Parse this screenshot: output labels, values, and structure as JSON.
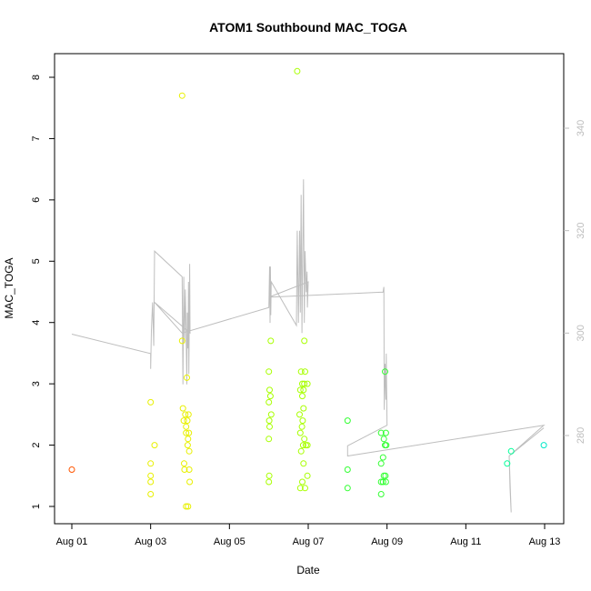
{
  "chart_data": {
    "type": "scatter",
    "title": "ATOM1 Southbound MAC_TOGA",
    "xlabel": "Date",
    "ylabel": "MAC_TOGA",
    "xlim": [
      1.0,
      13.0
    ],
    "ylim": [
      0.7,
      8.3
    ],
    "x_ticks": [
      1,
      3,
      5,
      7,
      9,
      11,
      13
    ],
    "x_tick_labels": [
      "Aug 01",
      "Aug 03",
      "Aug 05",
      "Aug 07",
      "Aug 09",
      "Aug 11",
      "Aug 13"
    ],
    "y_ticks": [
      1,
      2,
      3,
      4,
      5,
      6,
      7,
      8
    ],
    "y_tick_labels": [
      "1",
      "2",
      "3",
      "4",
      "5",
      "6",
      "7",
      "8"
    ],
    "y2_ticks": [
      280,
      300,
      320,
      340
    ],
    "y2_tick_labels": [
      "280",
      "300",
      "320",
      "340"
    ],
    "y2_lim": [
      262,
      351
    ],
    "grid": false,
    "line_color": "#bebebe",
    "colors": {
      "red": "#ff5500",
      "yellow": "#e8f000",
      "lime": "#a8ff00",
      "green": "#33ff33",
      "teal": "#00ff99",
      "aqua": "#00e8c8"
    },
    "points": [
      {
        "x": 1.0,
        "y": 1.6,
        "c": "red"
      },
      {
        "x": 3.0,
        "y": 2.7,
        "c": "yellow"
      },
      {
        "x": 3.0,
        "y": 1.7,
        "c": "yellow"
      },
      {
        "x": 3.0,
        "y": 1.5,
        "c": "yellow"
      },
      {
        "x": 3.0,
        "y": 1.4,
        "c": "yellow"
      },
      {
        "x": 3.0,
        "y": 1.2,
        "c": "yellow"
      },
      {
        "x": 3.1,
        "y": 2.0,
        "c": "yellow"
      },
      {
        "x": 3.8,
        "y": 7.7,
        "c": "yellow"
      },
      {
        "x": 3.8,
        "y": 3.7,
        "c": "yellow"
      },
      {
        "x": 3.82,
        "y": 2.6,
        "c": "yellow"
      },
      {
        "x": 3.84,
        "y": 2.4,
        "c": "yellow"
      },
      {
        "x": 3.85,
        "y": 1.7,
        "c": "yellow"
      },
      {
        "x": 3.86,
        "y": 1.6,
        "c": "yellow"
      },
      {
        "x": 3.88,
        "y": 2.5,
        "c": "yellow"
      },
      {
        "x": 3.9,
        "y": 2.3,
        "c": "yellow"
      },
      {
        "x": 3.9,
        "y": 2.2,
        "c": "yellow"
      },
      {
        "x": 3.9,
        "y": 1.0,
        "c": "yellow"
      },
      {
        "x": 3.92,
        "y": 3.1,
        "c": "yellow"
      },
      {
        "x": 3.93,
        "y": 2.4,
        "c": "yellow"
      },
      {
        "x": 3.94,
        "y": 2.0,
        "c": "yellow"
      },
      {
        "x": 3.95,
        "y": 2.1,
        "c": "yellow"
      },
      {
        "x": 3.95,
        "y": 1.0,
        "c": "yellow"
      },
      {
        "x": 3.96,
        "y": 2.5,
        "c": "yellow"
      },
      {
        "x": 3.97,
        "y": 2.2,
        "c": "yellow"
      },
      {
        "x": 3.98,
        "y": 1.9,
        "c": "yellow"
      },
      {
        "x": 3.98,
        "y": 1.6,
        "c": "yellow"
      },
      {
        "x": 3.99,
        "y": 1.4,
        "c": "yellow"
      },
      {
        "x": 6.05,
        "y": 3.7,
        "c": "lime"
      },
      {
        "x": 6.0,
        "y": 3.2,
        "c": "lime"
      },
      {
        "x": 6.02,
        "y": 2.9,
        "c": "lime"
      },
      {
        "x": 6.04,
        "y": 2.8,
        "c": "lime"
      },
      {
        "x": 6.0,
        "y": 2.7,
        "c": "lime"
      },
      {
        "x": 6.06,
        "y": 2.5,
        "c": "lime"
      },
      {
        "x": 6.01,
        "y": 2.4,
        "c": "lime"
      },
      {
        "x": 6.02,
        "y": 2.3,
        "c": "lime"
      },
      {
        "x": 6.0,
        "y": 2.1,
        "c": "lime"
      },
      {
        "x": 6.01,
        "y": 1.5,
        "c": "lime"
      },
      {
        "x": 6.0,
        "y": 1.4,
        "c": "lime"
      },
      {
        "x": 6.72,
        "y": 8.1,
        "c": "lime"
      },
      {
        "x": 6.9,
        "y": 3.7,
        "c": "lime"
      },
      {
        "x": 6.82,
        "y": 3.2,
        "c": "lime"
      },
      {
        "x": 6.92,
        "y": 3.2,
        "c": "lime"
      },
      {
        "x": 6.85,
        "y": 3.0,
        "c": "lime"
      },
      {
        "x": 6.9,
        "y": 3.0,
        "c": "lime"
      },
      {
        "x": 6.98,
        "y": 3.0,
        "c": "lime"
      },
      {
        "x": 6.8,
        "y": 2.9,
        "c": "lime"
      },
      {
        "x": 6.88,
        "y": 2.9,
        "c": "lime"
      },
      {
        "x": 6.85,
        "y": 2.8,
        "c": "lime"
      },
      {
        "x": 6.88,
        "y": 2.6,
        "c": "lime"
      },
      {
        "x": 6.78,
        "y": 2.5,
        "c": "lime"
      },
      {
        "x": 6.86,
        "y": 2.4,
        "c": "lime"
      },
      {
        "x": 6.84,
        "y": 2.3,
        "c": "lime"
      },
      {
        "x": 6.8,
        "y": 2.2,
        "c": "lime"
      },
      {
        "x": 6.9,
        "y": 2.1,
        "c": "lime"
      },
      {
        "x": 6.87,
        "y": 2.0,
        "c": "lime"
      },
      {
        "x": 6.94,
        "y": 2.0,
        "c": "lime"
      },
      {
        "x": 6.98,
        "y": 2.0,
        "c": "lime"
      },
      {
        "x": 6.82,
        "y": 1.9,
        "c": "lime"
      },
      {
        "x": 6.88,
        "y": 1.7,
        "c": "lime"
      },
      {
        "x": 6.98,
        "y": 1.5,
        "c": "lime"
      },
      {
        "x": 6.85,
        "y": 1.4,
        "c": "lime"
      },
      {
        "x": 6.8,
        "y": 1.3,
        "c": "lime"
      },
      {
        "x": 6.92,
        "y": 1.3,
        "c": "lime"
      },
      {
        "x": 8.0,
        "y": 2.4,
        "c": "green"
      },
      {
        "x": 8.0,
        "y": 1.6,
        "c": "green"
      },
      {
        "x": 8.0,
        "y": 1.3,
        "c": "green"
      },
      {
        "x": 8.95,
        "y": 3.2,
        "c": "green"
      },
      {
        "x": 8.85,
        "y": 2.2,
        "c": "green"
      },
      {
        "x": 8.97,
        "y": 2.2,
        "c": "green"
      },
      {
        "x": 8.92,
        "y": 2.1,
        "c": "green"
      },
      {
        "x": 8.95,
        "y": 2.0,
        "c": "green"
      },
      {
        "x": 8.98,
        "y": 2.0,
        "c": "green"
      },
      {
        "x": 8.9,
        "y": 1.8,
        "c": "green"
      },
      {
        "x": 8.85,
        "y": 1.7,
        "c": "green"
      },
      {
        "x": 8.92,
        "y": 1.5,
        "c": "green"
      },
      {
        "x": 8.96,
        "y": 1.5,
        "c": "green"
      },
      {
        "x": 8.85,
        "y": 1.4,
        "c": "green"
      },
      {
        "x": 8.9,
        "y": 1.4,
        "c": "green"
      },
      {
        "x": 8.97,
        "y": 1.4,
        "c": "green"
      },
      {
        "x": 8.85,
        "y": 1.2,
        "c": "green"
      },
      {
        "x": 12.05,
        "y": 1.7,
        "c": "teal"
      },
      {
        "x": 12.15,
        "y": 1.9,
        "c": "teal"
      },
      {
        "x": 12.98,
        "y": 2.0,
        "c": "aqua"
      }
    ],
    "line_series": [
      [
        1.0,
        299.8
      ],
      [
        3.0,
        296.0
      ],
      [
        3.0,
        293.0
      ],
      [
        3.02,
        300.5
      ],
      [
        3.05,
        306.0
      ],
      [
        3.08,
        297.5
      ],
      [
        3.1,
        316.0
      ],
      [
        3.8,
        311.0
      ],
      [
        3.82,
        290.0
      ],
      [
        3.84,
        311.0
      ],
      [
        3.86,
        298.0
      ],
      [
        3.88,
        308.5
      ],
      [
        3.9,
        300.0
      ],
      [
        3.92,
        290.0
      ],
      [
        3.93,
        304.0
      ],
      [
        3.95,
        297.0
      ],
      [
        3.96,
        310.0
      ],
      [
        3.97,
        292.0
      ],
      [
        3.98,
        301.0
      ],
      [
        3.99,
        313.5
      ],
      [
        4.0,
        300.0
      ],
      [
        3.1,
        306.0
      ],
      [
        3.8,
        300.0
      ],
      [
        6.0,
        305.0
      ],
      [
        6.02,
        313.0
      ],
      [
        6.03,
        302.0
      ],
      [
        6.04,
        313.0
      ],
      [
        6.05,
        303.5
      ],
      [
        6.06,
        310.0
      ],
      [
        6.7,
        301.5
      ],
      [
        6.72,
        320.0
      ],
      [
        6.75,
        302.0
      ],
      [
        6.78,
        320.0
      ],
      [
        6.8,
        304.0
      ],
      [
        6.82,
        327.0
      ],
      [
        6.84,
        300.0
      ],
      [
        6.86,
        315.0
      ],
      [
        6.88,
        330.0
      ],
      [
        6.9,
        302.0
      ],
      [
        6.92,
        316.0
      ],
      [
        6.95,
        308.0
      ],
      [
        6.97,
        312.0
      ],
      [
        6.98,
        305.0
      ],
      [
        7.0,
        310.0
      ],
      [
        6.0,
        307.0
      ],
      [
        8.9,
        308.0
      ],
      [
        8.92,
        309.0
      ],
      [
        8.93,
        285.0
      ],
      [
        8.95,
        294.0
      ],
      [
        8.97,
        287.0
      ],
      [
        8.98,
        296.0
      ],
      [
        9.0,
        282.0
      ],
      [
        8.0,
        278.0
      ],
      [
        8.0,
        276.0
      ],
      [
        12.98,
        282.0
      ],
      [
        12.1,
        276.0
      ],
      [
        12.12,
        270.0
      ],
      [
        12.15,
        265.0
      ],
      [
        12.1,
        276.0
      ],
      [
        12.98,
        281.5
      ]
    ]
  }
}
